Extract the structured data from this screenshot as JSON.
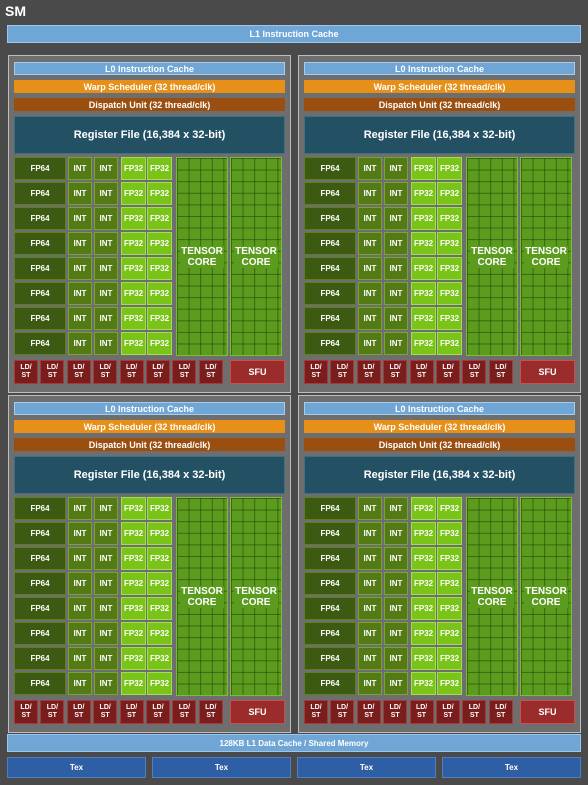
{
  "sm": {
    "title": "SM",
    "l1_instruction_cache": "L1 Instruction Cache",
    "l1_data_cache": "128KB L1 Data Cache / Shared Memory",
    "tex_units": [
      "Tex",
      "Tex",
      "Tex",
      "Tex"
    ]
  },
  "partition": {
    "l0_cache": "L0 Instruction Cache",
    "warp_scheduler": "Warp Scheduler (32 thread/clk)",
    "dispatch_unit": "Dispatch Unit (32 thread/clk)",
    "register_file": "Register File (16,384 x 32-bit)",
    "fp64": "FP64",
    "int": "INT",
    "fp32": "FP32",
    "tensor_core_line1": "TENSOR",
    "tensor_core_line2": "CORE",
    "ldst_line1": "LD/",
    "ldst_line2": "ST",
    "sfu": "SFU"
  },
  "counts": {
    "partitions": 4,
    "rows_per_partition": 8,
    "tensor_cores_per_partition": 2,
    "ldst_per_partition": 8
  },
  "colors": {
    "l1_cache": "#6fa6d6",
    "warp_scheduler": "#e79019",
    "dispatch_unit": "#9a4e10",
    "register_file": "#245064",
    "fp64": "#3c5a12",
    "int": "#547a15",
    "fp32": "#7ac41a",
    "tensor_core": "#5b9b1e",
    "ldst": "#7a1d1d",
    "sfu": "#9a2c2c",
    "tex": "#2e5ea3"
  }
}
